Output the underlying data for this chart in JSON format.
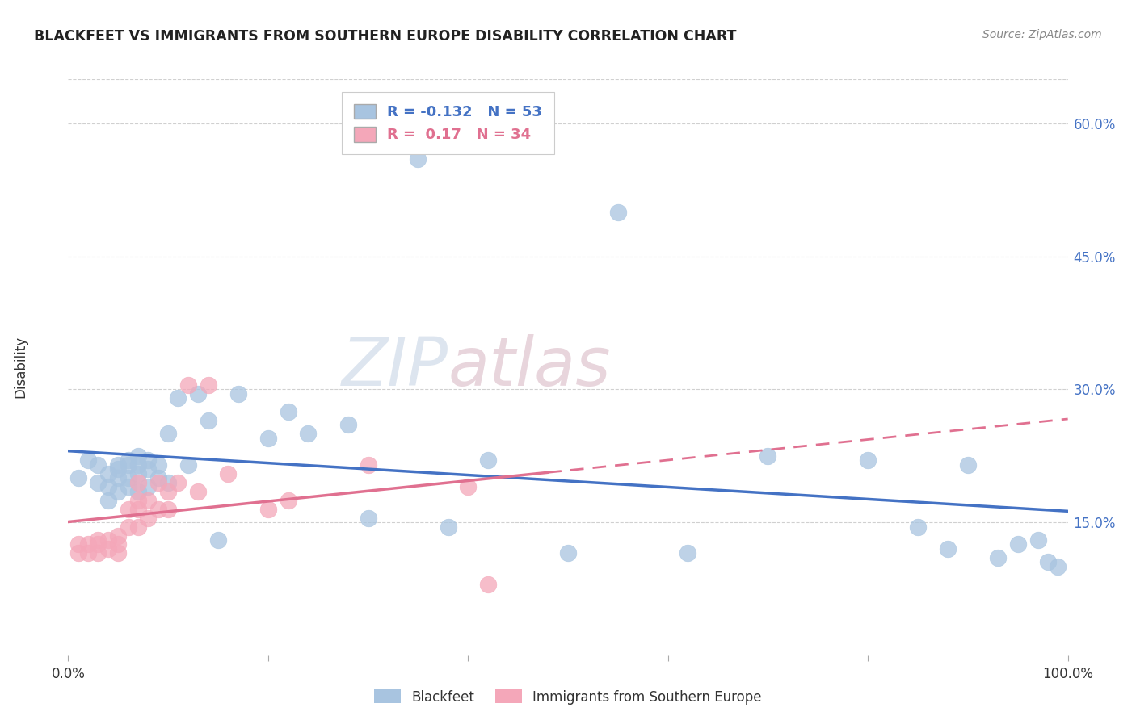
{
  "title": "BLACKFEET VS IMMIGRANTS FROM SOUTHERN EUROPE DISABILITY CORRELATION CHART",
  "source": "Source: ZipAtlas.com",
  "ylabel": "Disability",
  "watermark_zip": "ZIP",
  "watermark_atlas": "atlas",
  "xlim": [
    0.0,
    1.0
  ],
  "ylim": [
    0.0,
    0.65
  ],
  "xticks": [
    0.0,
    0.2,
    0.4,
    0.6,
    0.8,
    1.0
  ],
  "xticklabels": [
    "0.0%",
    "",
    "",
    "",
    "",
    "100.0%"
  ],
  "yticks_right": [
    0.15,
    0.3,
    0.45,
    0.6
  ],
  "ytick_right_labels": [
    "15.0%",
    "30.0%",
    "45.0%",
    "60.0%"
  ],
  "blue_R": -0.132,
  "blue_N": 53,
  "pink_R": 0.17,
  "pink_N": 34,
  "blue_color": "#a8c4e0",
  "pink_color": "#f4a7b9",
  "blue_line_color": "#4472c4",
  "pink_line_color": "#e07090",
  "grid_color": "#d0d0d0",
  "background_color": "#ffffff",
  "blue_scatter_x": [
    0.01,
    0.02,
    0.03,
    0.03,
    0.04,
    0.04,
    0.04,
    0.05,
    0.05,
    0.05,
    0.05,
    0.06,
    0.06,
    0.06,
    0.06,
    0.07,
    0.07,
    0.07,
    0.07,
    0.08,
    0.08,
    0.08,
    0.09,
    0.09,
    0.1,
    0.1,
    0.11,
    0.12,
    0.13,
    0.14,
    0.15,
    0.17,
    0.2,
    0.22,
    0.24,
    0.28,
    0.3,
    0.35,
    0.38,
    0.42,
    0.5,
    0.55,
    0.62,
    0.7,
    0.8,
    0.85,
    0.88,
    0.9,
    0.93,
    0.95,
    0.97,
    0.98,
    0.99
  ],
  "blue_scatter_y": [
    0.2,
    0.22,
    0.215,
    0.195,
    0.205,
    0.19,
    0.175,
    0.215,
    0.21,
    0.2,
    0.185,
    0.22,
    0.215,
    0.2,
    0.19,
    0.225,
    0.215,
    0.205,
    0.185,
    0.22,
    0.21,
    0.19,
    0.215,
    0.2,
    0.25,
    0.195,
    0.29,
    0.215,
    0.295,
    0.265,
    0.13,
    0.295,
    0.245,
    0.275,
    0.25,
    0.26,
    0.155,
    0.56,
    0.145,
    0.22,
    0.115,
    0.5,
    0.115,
    0.225,
    0.22,
    0.145,
    0.12,
    0.215,
    0.11,
    0.125,
    0.13,
    0.105,
    0.1
  ],
  "pink_scatter_x": [
    0.01,
    0.01,
    0.02,
    0.02,
    0.03,
    0.03,
    0.03,
    0.04,
    0.04,
    0.05,
    0.05,
    0.05,
    0.06,
    0.06,
    0.07,
    0.07,
    0.07,
    0.07,
    0.08,
    0.08,
    0.09,
    0.09,
    0.1,
    0.1,
    0.11,
    0.12,
    0.13,
    0.14,
    0.16,
    0.2,
    0.22,
    0.3,
    0.4,
    0.42
  ],
  "pink_scatter_y": [
    0.125,
    0.115,
    0.125,
    0.115,
    0.13,
    0.125,
    0.115,
    0.13,
    0.12,
    0.135,
    0.125,
    0.115,
    0.165,
    0.145,
    0.195,
    0.175,
    0.165,
    0.145,
    0.175,
    0.155,
    0.195,
    0.165,
    0.185,
    0.165,
    0.195,
    0.305,
    0.185,
    0.305,
    0.205,
    0.165,
    0.175,
    0.215,
    0.19,
    0.08
  ]
}
